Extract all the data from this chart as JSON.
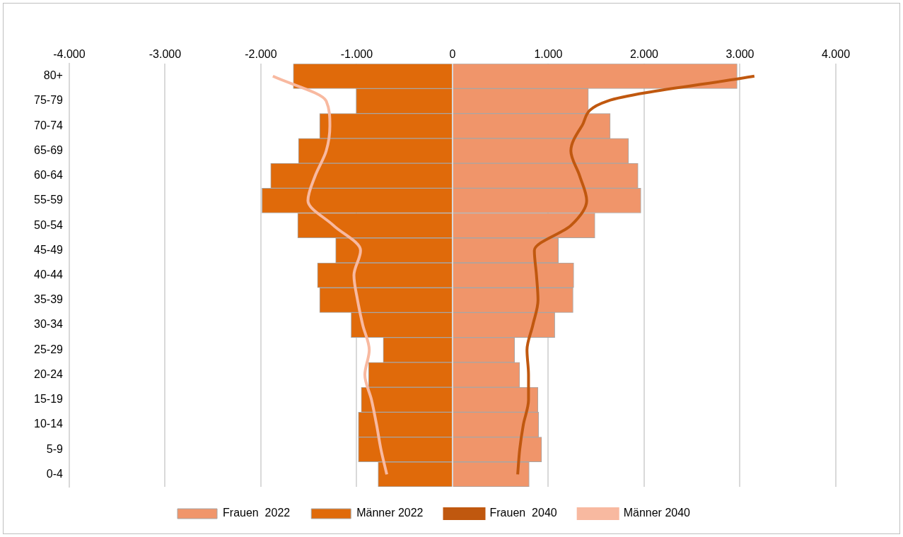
{
  "chart_data": {
    "type": "bar",
    "orientation": "horizontal",
    "stacked": true,
    "categories": [
      "80+",
      "75-79",
      "70-74",
      "65-69",
      "60-64",
      "55-59",
      "50-54",
      "45-49",
      "40-44",
      "35-39",
      "30-34",
      "25-29",
      "20-24",
      "15-19",
      "10-14",
      "5-9",
      "0-4"
    ],
    "series": [
      {
        "name": "Frauen  2022",
        "color": "#f0956a",
        "values": [
          2970,
          1418,
          1646,
          1837,
          1936,
          1966,
          1486,
          1105,
          1265,
          1258,
          1067,
          648,
          701,
          892,
          899,
          930,
          800
        ]
      },
      {
        "name": "Männer 2022",
        "color": "#e06a0a",
        "values": [
          -1662,
          -1006,
          -1387,
          -1608,
          -1898,
          -1989,
          -1616,
          -1220,
          -1410,
          -1387,
          -1059,
          -724,
          -877,
          -953,
          -983,
          -983,
          -777
        ]
      },
      {
        "name": "Frauen  2040",
        "type": "line",
        "color": "#c0580f",
        "values": [
          3150,
          1616,
          1350,
          1235,
          1326,
          1400,
          1235,
          854,
          876,
          892,
          838,
          777,
          793,
          793,
          739,
          701,
          680
        ]
      },
      {
        "name": "Männer 2040",
        "type": "line",
        "color": "#f8b9a0",
        "values": [
          -1875,
          -1318,
          -1280,
          -1318,
          -1433,
          -1509,
          -1242,
          -960,
          -1029,
          -991,
          -937,
          -869,
          -915,
          -846,
          -793,
          -747,
          -686
        ]
      }
    ],
    "xlim": [
      -4000,
      4000
    ],
    "xticks": [
      {
        "value": -4000,
        "label": "-4.000"
      },
      {
        "value": -3000,
        "label": "-3.000"
      },
      {
        "value": -2000,
        "label": "-2.000"
      },
      {
        "value": -1000,
        "label": "-1.000"
      },
      0,
      {
        "value": 1000,
        "label": "1.000"
      },
      {
        "value": 2000,
        "label": "2.000"
      },
      {
        "value": 3000,
        "label": "3.000"
      },
      {
        "value": 4000,
        "label": "4.000"
      }
    ],
    "grid": "x",
    "legend": "bottom",
    "marker": "none",
    "line_style": "solid"
  }
}
